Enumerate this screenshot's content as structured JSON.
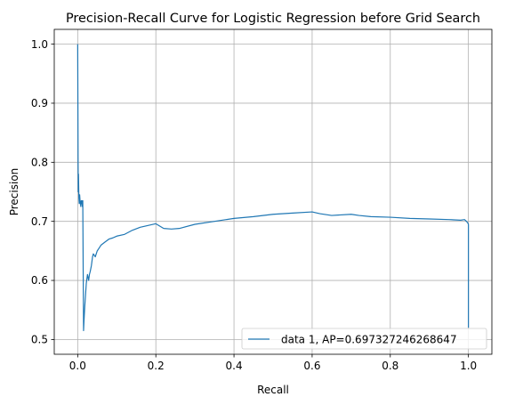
{
  "chart_data": {
    "type": "line",
    "title": "Precision-Recall Curve for Logistic Regression before Grid Search",
    "xlabel": "Recall",
    "ylabel": "Precision",
    "xlim": [
      -0.06,
      1.06
    ],
    "ylim": [
      0.475,
      1.025
    ],
    "xticks": [
      0.0,
      0.2,
      0.4,
      0.6,
      0.8,
      1.0
    ],
    "xtick_labels": [
      "0.0",
      "0.2",
      "0.4",
      "0.6",
      "0.8",
      "1.0"
    ],
    "yticks": [
      0.5,
      0.6,
      0.7,
      0.8,
      0.9,
      1.0
    ],
    "ytick_labels": [
      "0.5",
      "0.6",
      "0.7",
      "0.8",
      "0.9",
      "1.0"
    ],
    "grid": true,
    "legend_position": "bottom-right",
    "series": [
      {
        "name": "data 1, AP=0.697327246268647",
        "color": "#1f77b4",
        "x": [
          0.0,
          0.0005,
          0.001,
          0.0015,
          0.002,
          0.003,
          0.004,
          0.005,
          0.006,
          0.007,
          0.008,
          0.009,
          0.01,
          0.011,
          0.012,
          0.013,
          0.014,
          0.015,
          0.016,
          0.018,
          0.02,
          0.022,
          0.025,
          0.028,
          0.03,
          0.032,
          0.035,
          0.038,
          0.04,
          0.045,
          0.05,
          0.055,
          0.06,
          0.07,
          0.08,
          0.09,
          0.1,
          0.12,
          0.14,
          0.16,
          0.18,
          0.2,
          0.22,
          0.24,
          0.26,
          0.3,
          0.35,
          0.4,
          0.45,
          0.5,
          0.55,
          0.6,
          0.62,
          0.65,
          0.7,
          0.72,
          0.75,
          0.8,
          0.85,
          0.9,
          0.95,
          0.98,
          0.99,
          0.995,
          0.9985,
          1.0,
          1.0
        ],
        "y": [
          1.0,
          0.9,
          0.8,
          0.75,
          0.78,
          0.74,
          0.73,
          0.745,
          0.735,
          0.73,
          0.725,
          0.735,
          0.73,
          0.735,
          0.725,
          0.735,
          0.62,
          0.515,
          0.53,
          0.555,
          0.575,
          0.595,
          0.61,
          0.6,
          0.61,
          0.615,
          0.625,
          0.64,
          0.645,
          0.64,
          0.65,
          0.655,
          0.66,
          0.665,
          0.67,
          0.672,
          0.675,
          0.678,
          0.685,
          0.69,
          0.693,
          0.696,
          0.688,
          0.687,
          0.688,
          0.695,
          0.7,
          0.705,
          0.708,
          0.712,
          0.714,
          0.716,
          0.713,
          0.71,
          0.712,
          0.71,
          0.708,
          0.707,
          0.705,
          0.704,
          0.703,
          0.702,
          0.703,
          0.7,
          0.697,
          0.695,
          0.52
        ]
      }
    ]
  }
}
